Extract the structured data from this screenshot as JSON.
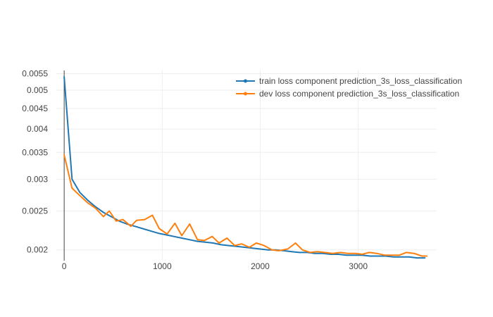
{
  "chart_data": {
    "type": "line",
    "title": "",
    "xlabel": "",
    "ylabel": "",
    "y_scale": "log",
    "xlim": [
      -80,
      3800
    ],
    "ylim": [
      0.00188,
      0.0056
    ],
    "x_ticks": [
      0,
      1000,
      2000,
      3000
    ],
    "x_tick_labels": [
      "0",
      "1000",
      "2000",
      "3000"
    ],
    "y_ticks": [
      0.002,
      0.0025,
      0.003,
      0.0035,
      0.004,
      0.0045,
      0.005,
      0.0055
    ],
    "y_tick_labels": [
      "0.002",
      "0.0025",
      "0.003",
      "0.0035",
      "0.004",
      "0.0045",
      "0.005",
      "0.0055"
    ],
    "grid": true,
    "legend_position": "top-right",
    "series": [
      {
        "name": "train loss component prediction_3s_loss_classification",
        "color": "#1f77b4",
        "x": [
          0,
          80,
          160,
          240,
          320,
          400,
          480,
          560,
          640,
          720,
          800,
          880,
          960,
          1040,
          1120,
          1200,
          1280,
          1360,
          1440,
          1520,
          1600,
          1680,
          1760,
          1840,
          1920,
          2000,
          2080,
          2160,
          2240,
          2320,
          2400,
          2480,
          2560,
          2640,
          2720,
          2800,
          2880,
          2960,
          3040,
          3120,
          3200,
          3280,
          3360,
          3440,
          3520,
          3600,
          3680
        ],
        "values": [
          0.0054,
          0.003,
          0.00278,
          0.00266,
          0.00256,
          0.00248,
          0.00242,
          0.00236,
          0.00232,
          0.00229,
          0.00226,
          0.00223,
          0.0022,
          0.00218,
          0.00216,
          0.00214,
          0.00212,
          0.0021,
          0.00209,
          0.00208,
          0.00206,
          0.00205,
          0.00204,
          0.00203,
          0.00202,
          0.00201,
          0.002,
          0.002,
          0.00199,
          0.00198,
          0.00197,
          0.00197,
          0.00196,
          0.00196,
          0.00195,
          0.00195,
          0.00194,
          0.00194,
          0.00194,
          0.00193,
          0.00193,
          0.00193,
          0.00192,
          0.00192,
          0.00192,
          0.00191,
          0.00191
        ]
      },
      {
        "name": "dev loss component prediction_3s_loss_classification",
        "color": "#ff7f0e",
        "x": [
          0,
          80,
          160,
          240,
          320,
          400,
          460,
          530,
          600,
          680,
          740,
          820,
          900,
          970,
          1050,
          1130,
          1200,
          1280,
          1360,
          1430,
          1510,
          1580,
          1660,
          1740,
          1810,
          1890,
          1960,
          2040,
          2120,
          2190,
          2280,
          2360,
          2430,
          2510,
          2580,
          2660,
          2740,
          2820,
          2890,
          2970,
          3040,
          3110,
          3190,
          3270,
          3350,
          3420,
          3490,
          3570,
          3650,
          3700
        ],
        "values": [
          0.00345,
          0.00285,
          0.00273,
          0.00262,
          0.00254,
          0.00242,
          0.0025,
          0.00236,
          0.00238,
          0.00229,
          0.00237,
          0.00238,
          0.00244,
          0.00226,
          0.00219,
          0.00233,
          0.00217,
          0.00232,
          0.00212,
          0.00211,
          0.00216,
          0.00208,
          0.00214,
          0.00205,
          0.00207,
          0.00203,
          0.00208,
          0.00205,
          0.002,
          0.00199,
          0.00201,
          0.00208,
          0.002,
          0.00197,
          0.00198,
          0.00197,
          0.00196,
          0.00197,
          0.00196,
          0.00196,
          0.00195,
          0.00197,
          0.00196,
          0.00194,
          0.00194,
          0.00194,
          0.00197,
          0.00196,
          0.00193,
          0.00193
        ]
      }
    ]
  }
}
